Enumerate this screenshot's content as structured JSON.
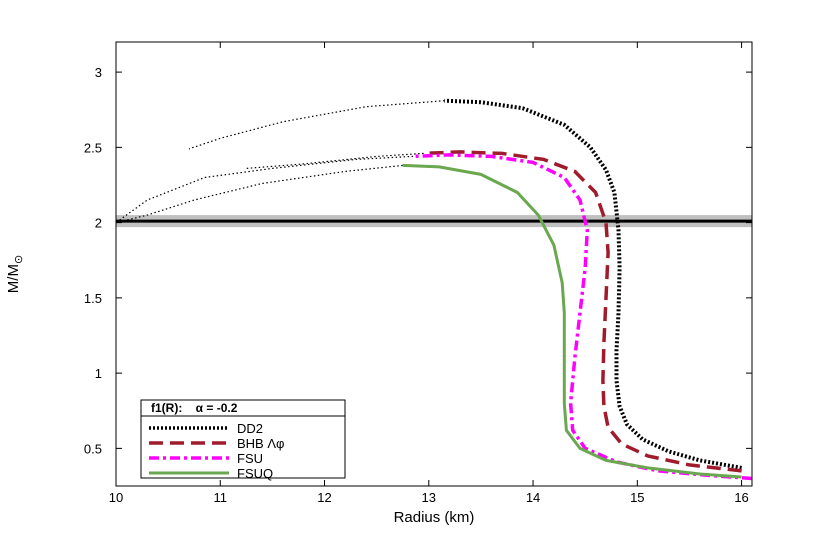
{
  "chart_data": {
    "type": "line",
    "title": "",
    "xlabel": "Radius (km)",
    "ylabel": "M/M",
    "ylabel_sub": "⊙",
    "xlim": [
      10,
      16.1
    ],
    "ylim": [
      0.25,
      3.2
    ],
    "xticks": [
      10,
      11,
      12,
      13,
      14,
      15,
      16
    ],
    "yticks": [
      0.5,
      1,
      1.5,
      2,
      2.5,
      3
    ],
    "xtick_labels": [
      "10",
      "11",
      "12",
      "13",
      "14",
      "15",
      "16"
    ],
    "ytick_labels": [
      "0.5",
      "1",
      "1.5",
      "2",
      "2.5",
      "3"
    ],
    "grid": false,
    "legend": {
      "placement": "bottom-left",
      "title": "f1(R):    α = -0.2",
      "entries": [
        "DD2",
        "BHB Λφ",
        "FSU",
        "FSUQ"
      ]
    },
    "reference_band": {
      "y": 2.01,
      "y_low": 1.97,
      "y_high": 2.05,
      "color": "#c0c0c0",
      "line_color": "#000000"
    },
    "series": [
      {
        "name": "DD2",
        "color": "#000000",
        "style": "dotted-thick",
        "unstable_style": "dotted-thin",
        "stable": [
          [
            16.0,
            0.37
          ],
          [
            15.6,
            0.42
          ],
          [
            15.3,
            0.48
          ],
          [
            15.05,
            0.56
          ],
          [
            14.9,
            0.66
          ],
          [
            14.83,
            0.78
          ],
          [
            14.8,
            0.95
          ],
          [
            14.8,
            1.15
          ],
          [
            14.82,
            1.4
          ],
          [
            14.83,
            1.7
          ],
          [
            14.82,
            1.95
          ],
          [
            14.78,
            2.2
          ],
          [
            14.7,
            2.35
          ],
          [
            14.55,
            2.5
          ],
          [
            14.3,
            2.65
          ],
          [
            13.9,
            2.76
          ],
          [
            13.5,
            2.8
          ],
          [
            13.15,
            2.81
          ]
        ],
        "unstable": [
          [
            13.15,
            2.81
          ],
          [
            12.4,
            2.77
          ],
          [
            11.6,
            2.67
          ],
          [
            11.0,
            2.56
          ],
          [
            10.7,
            2.49
          ]
        ]
      },
      {
        "name": "BHB Λφ",
        "color": "#a01c2c",
        "style": "dashed",
        "unstable_style": "dotted-thin",
        "stable": [
          [
            16.0,
            0.35
          ],
          [
            15.5,
            0.39
          ],
          [
            15.1,
            0.45
          ],
          [
            14.85,
            0.53
          ],
          [
            14.72,
            0.64
          ],
          [
            14.68,
            0.78
          ],
          [
            14.67,
            0.95
          ],
          [
            14.68,
            1.2
          ],
          [
            14.7,
            1.5
          ],
          [
            14.72,
            1.8
          ],
          [
            14.7,
            2.0
          ],
          [
            14.6,
            2.2
          ],
          [
            14.4,
            2.34
          ],
          [
            14.1,
            2.42
          ],
          [
            13.7,
            2.46
          ],
          [
            13.3,
            2.47
          ],
          [
            12.95,
            2.46
          ]
        ],
        "unstable": [
          [
            12.95,
            2.46
          ],
          [
            12.5,
            2.44
          ],
          [
            11.8,
            2.39
          ],
          [
            11.25,
            2.36
          ]
        ]
      },
      {
        "name": "FSU",
        "color": "#ff00ff",
        "style": "dashdot",
        "unstable_style": "dotted-thin",
        "stable": [
          [
            16.1,
            0.3
          ],
          [
            15.7,
            0.32
          ],
          [
            15.2,
            0.35
          ],
          [
            14.8,
            0.41
          ],
          [
            14.5,
            0.5
          ],
          [
            14.38,
            0.62
          ],
          [
            14.36,
            0.8
          ],
          [
            14.4,
            1.1
          ],
          [
            14.45,
            1.4
          ],
          [
            14.5,
            1.7
          ],
          [
            14.52,
            1.95
          ],
          [
            14.45,
            2.15
          ],
          [
            14.3,
            2.3
          ],
          [
            14.0,
            2.4
          ],
          [
            13.6,
            2.44
          ],
          [
            13.2,
            2.45
          ],
          [
            12.85,
            2.44
          ]
        ],
        "unstable": [
          [
            12.85,
            2.44
          ],
          [
            12.3,
            2.42
          ],
          [
            11.5,
            2.36
          ],
          [
            10.85,
            2.3
          ],
          [
            10.3,
            2.15
          ],
          [
            10.0,
            2.0
          ]
        ]
      },
      {
        "name": "FSUQ",
        "color": "#6aa84f",
        "style": "solid",
        "unstable_style": "dotted-thin",
        "stable": [
          [
            16.0,
            0.31
          ],
          [
            15.6,
            0.33
          ],
          [
            15.1,
            0.37
          ],
          [
            14.7,
            0.42
          ],
          [
            14.45,
            0.5
          ],
          [
            14.32,
            0.62
          ],
          [
            14.3,
            0.8
          ],
          [
            14.3,
            1.1
          ],
          [
            14.3,
            1.4
          ],
          [
            14.28,
            1.6
          ],
          [
            14.2,
            1.85
          ],
          [
            14.05,
            2.05
          ],
          [
            13.85,
            2.2
          ],
          [
            13.5,
            2.32
          ],
          [
            13.1,
            2.37
          ],
          [
            12.75,
            2.38
          ]
        ],
        "unstable": [
          [
            12.75,
            2.38
          ],
          [
            12.2,
            2.34
          ],
          [
            11.4,
            2.26
          ],
          [
            10.75,
            2.15
          ],
          [
            10.3,
            2.05
          ],
          [
            10.0,
            2.0
          ]
        ]
      }
    ]
  }
}
